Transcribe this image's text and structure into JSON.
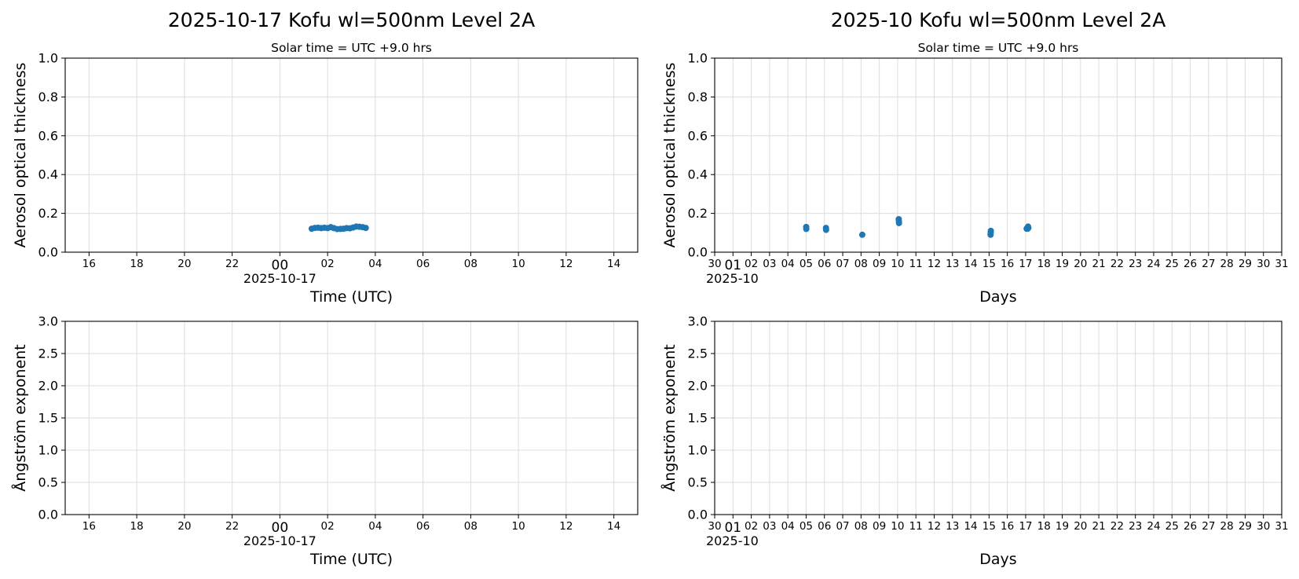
{
  "colors": {
    "series": "#1f77b4",
    "grid": "#dddddd",
    "axis": "#000000"
  },
  "chart_data": [
    {
      "type": "scatter",
      "title": "2025-10-17  Kofu  wl=500nm  Level 2A",
      "subtitle": "Solar time = UTC +9.0 hrs",
      "xlabel": "Time (UTC)",
      "ylabel": "Aerosol optical thickness",
      "xlim": [
        "2025-10-16 15:00",
        "2025-10-17 15:00"
      ],
      "xticks": [
        "16",
        "18",
        "20",
        "22",
        "00",
        "02",
        "04",
        "06",
        "08",
        "10",
        "12",
        "14"
      ],
      "x_offset_label": "2025-10-17",
      "ylim": [
        0,
        1.0
      ],
      "yticks": [
        "0.0",
        "0.2",
        "0.4",
        "0.6",
        "0.8",
        "1.0"
      ],
      "grid": true,
      "series": [
        {
          "marker": "circle",
          "color": "#1f77b4",
          "points": [
            {
              "x": "2025-10-17 01:20",
              "y": 0.121
            },
            {
              "x": "2025-10-17 01:28",
              "y": 0.125
            },
            {
              "x": "2025-10-17 01:36",
              "y": 0.126
            },
            {
              "x": "2025-10-17 01:44",
              "y": 0.124
            },
            {
              "x": "2025-10-17 01:52",
              "y": 0.126
            },
            {
              "x": "2025-10-17 02:00",
              "y": 0.124
            },
            {
              "x": "2025-10-17 02:08",
              "y": 0.129
            },
            {
              "x": "2025-10-17 02:16",
              "y": 0.124
            },
            {
              "x": "2025-10-17 02:24",
              "y": 0.119
            },
            {
              "x": "2025-10-17 02:32",
              "y": 0.12
            },
            {
              "x": "2025-10-17 02:40",
              "y": 0.121
            },
            {
              "x": "2025-10-17 02:48",
              "y": 0.124
            },
            {
              "x": "2025-10-17 02:56",
              "y": 0.123
            },
            {
              "x": "2025-10-17 03:04",
              "y": 0.127
            },
            {
              "x": "2025-10-17 03:12",
              "y": 0.132
            },
            {
              "x": "2025-10-17 03:20",
              "y": 0.131
            },
            {
              "x": "2025-10-17 03:28",
              "y": 0.129
            },
            {
              "x": "2025-10-17 03:36",
              "y": 0.125
            }
          ]
        }
      ]
    },
    {
      "type": "scatter",
      "title": "2025-10  Kofu  wl=500nm  Level 2A",
      "subtitle": "Solar time = UTC +9.0 hrs",
      "xlabel": "Days",
      "ylabel": "Aerosol optical thickness",
      "xlim": [
        "2025-09-30 00:00",
        "2025-10-31 00:00"
      ],
      "xticks": [
        "30",
        "01",
        "02",
        "03",
        "04",
        "05",
        "06",
        "07",
        "08",
        "09",
        "10",
        "11",
        "12",
        "13",
        "14",
        "15",
        "16",
        "17",
        "18",
        "19",
        "20",
        "21",
        "22",
        "23",
        "24",
        "25",
        "26",
        "27",
        "28",
        "29",
        "30",
        "31"
      ],
      "x_offset_label": "2025-10",
      "ylim": [
        0,
        1.0
      ],
      "yticks": [
        "0.0",
        "0.2",
        "0.4",
        "0.6",
        "0.8",
        "1.0"
      ],
      "grid": true,
      "series": [
        {
          "marker": "circle",
          "color": "#1f77b4",
          "points": [
            {
              "x": "2025-10-05 00:05",
              "y": 0.13
            },
            {
              "x": "2025-10-05 00:10",
              "y": 0.12
            },
            {
              "x": "2025-10-06 02:00",
              "y": 0.125
            },
            {
              "x": "2025-10-06 02:10",
              "y": 0.115
            },
            {
              "x": "2025-10-08 01:40",
              "y": 0.09
            },
            {
              "x": "2025-10-10 01:30",
              "y": 0.17
            },
            {
              "x": "2025-10-10 01:40",
              "y": 0.16
            },
            {
              "x": "2025-10-10 01:50",
              "y": 0.15
            },
            {
              "x": "2025-10-15 02:00",
              "y": 0.09
            },
            {
              "x": "2025-10-15 02:10",
              "y": 0.1
            },
            {
              "x": "2025-10-15 02:20",
              "y": 0.11
            },
            {
              "x": "2025-10-17 01:20",
              "y": 0.121
            },
            {
              "x": "2025-10-17 02:00",
              "y": 0.124
            },
            {
              "x": "2025-10-17 02:40",
              "y": 0.121
            },
            {
              "x": "2025-10-17 03:10",
              "y": 0.132
            },
            {
              "x": "2025-10-17 03:36",
              "y": 0.125
            }
          ]
        }
      ]
    },
    {
      "type": "scatter",
      "title": "",
      "subtitle": "",
      "xlabel": "Time (UTC)",
      "ylabel": "Ångström exponent",
      "xlim": [
        "2025-10-16 15:00",
        "2025-10-17 15:00"
      ],
      "xticks": [
        "16",
        "18",
        "20",
        "22",
        "00",
        "02",
        "04",
        "06",
        "08",
        "10",
        "12",
        "14"
      ],
      "x_offset_label": "2025-10-17",
      "ylim": [
        0,
        3.0
      ],
      "yticks": [
        "0.0",
        "0.5",
        "1.0",
        "1.5",
        "2.0",
        "2.5",
        "3.0"
      ],
      "grid": true,
      "series": []
    },
    {
      "type": "scatter",
      "title": "",
      "subtitle": "",
      "xlabel": "Days",
      "ylabel": "Ångström exponent",
      "xlim": [
        "2025-09-30 00:00",
        "2025-10-31 00:00"
      ],
      "xticks": [
        "30",
        "01",
        "02",
        "03",
        "04",
        "05",
        "06",
        "07",
        "08",
        "09",
        "10",
        "11",
        "12",
        "13",
        "14",
        "15",
        "16",
        "17",
        "18",
        "19",
        "20",
        "21",
        "22",
        "23",
        "24",
        "25",
        "26",
        "27",
        "28",
        "29",
        "30",
        "31"
      ],
      "x_offset_label": "2025-10",
      "ylim": [
        0,
        3.0
      ],
      "yticks": [
        "0.0",
        "0.5",
        "1.0",
        "1.5",
        "2.0",
        "2.5",
        "3.0"
      ],
      "grid": true,
      "series": []
    }
  ]
}
